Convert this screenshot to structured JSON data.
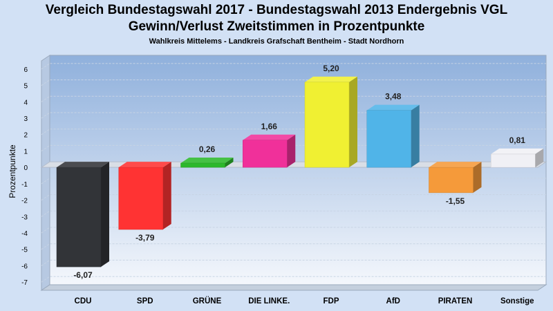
{
  "header": {
    "title_line1": "Vergleich Bundestagswahl 2017 - Bundestagswahl 2013 Endergebnis VGL",
    "title_line2": "Gewinn/Verlust Zweitstimmen in Prozentpunkte",
    "subtitle": "Wahlkreis Mittelems - Landkreis Grafschaft Bentheim - Stadt Nordhorn"
  },
  "chart_data": {
    "type": "bar",
    "title": "Vergleich Bundestagswahl 2017 - Bundestagswahl 2013 Endergebnis VGL",
    "subtitle": "Gewinn/Verlust Zweitstimmen in Prozentpunkte",
    "xlabel": "",
    "ylabel": "Prozentpunkte",
    "ylim": [
      -7.5,
      6.5
    ],
    "yticks": [
      6,
      5,
      4,
      3,
      2,
      1,
      0,
      -1,
      -2,
      -3,
      -4,
      -5,
      -6,
      -7
    ],
    "grid": true,
    "categories": [
      "CDU",
      "SPD",
      "GRÜNE",
      "DIE LINKE.",
      "FDP",
      "AfD",
      "PIRATEN",
      "Sonstige"
    ],
    "values": [
      -6.07,
      -3.79,
      0.26,
      1.66,
      5.2,
      3.48,
      -1.55,
      0.81
    ],
    "value_labels": [
      "-6,07",
      "-3,79",
      "0,26",
      "1,66",
      "5,20",
      "3,48",
      "-1,55",
      "0,81"
    ],
    "colors": [
      "#323438",
      "#ff3333",
      "#2cb82c",
      "#f0309a",
      "#f0f032",
      "#50b4e8",
      "#f59a3a",
      "#f0f0f5"
    ]
  }
}
